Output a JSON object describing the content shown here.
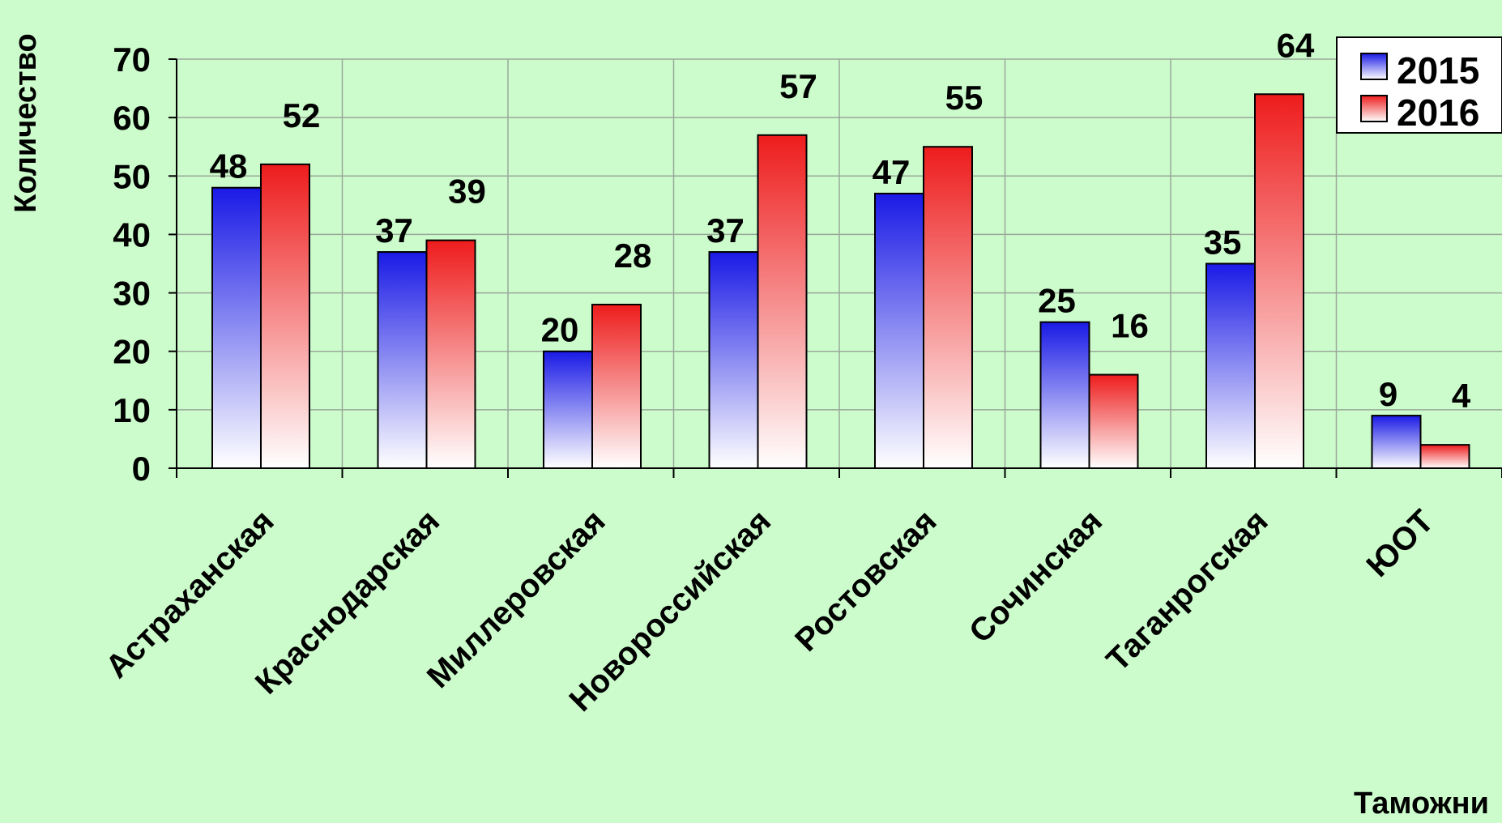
{
  "chart_data": {
    "type": "bar",
    "title": "",
    "ylabel": "Количество",
    "xlabel": "Таможни",
    "ylim": [
      0,
      70
    ],
    "yticks": [
      "0",
      "10",
      "20",
      "30",
      "40",
      "50",
      "60",
      "70"
    ],
    "categories": [
      "Астраханская",
      "Краснодарская",
      "Миллеровская",
      "Новороссийская",
      "Ростовская",
      "Сочинская",
      "Таганрогская",
      "ЮОТ"
    ],
    "series": [
      {
        "name": "2015",
        "values": [
          48,
          37,
          20,
          37,
          47,
          25,
          35,
          9
        ],
        "color": "#1a1ae6"
      },
      {
        "name": "2016",
        "values": [
          52,
          39,
          28,
          57,
          55,
          16,
          64,
          4
        ],
        "color": "#ee1c1c"
      }
    ],
    "grid": true,
    "legend": "top-right",
    "data_labels": true,
    "background": "#ccfccc"
  }
}
